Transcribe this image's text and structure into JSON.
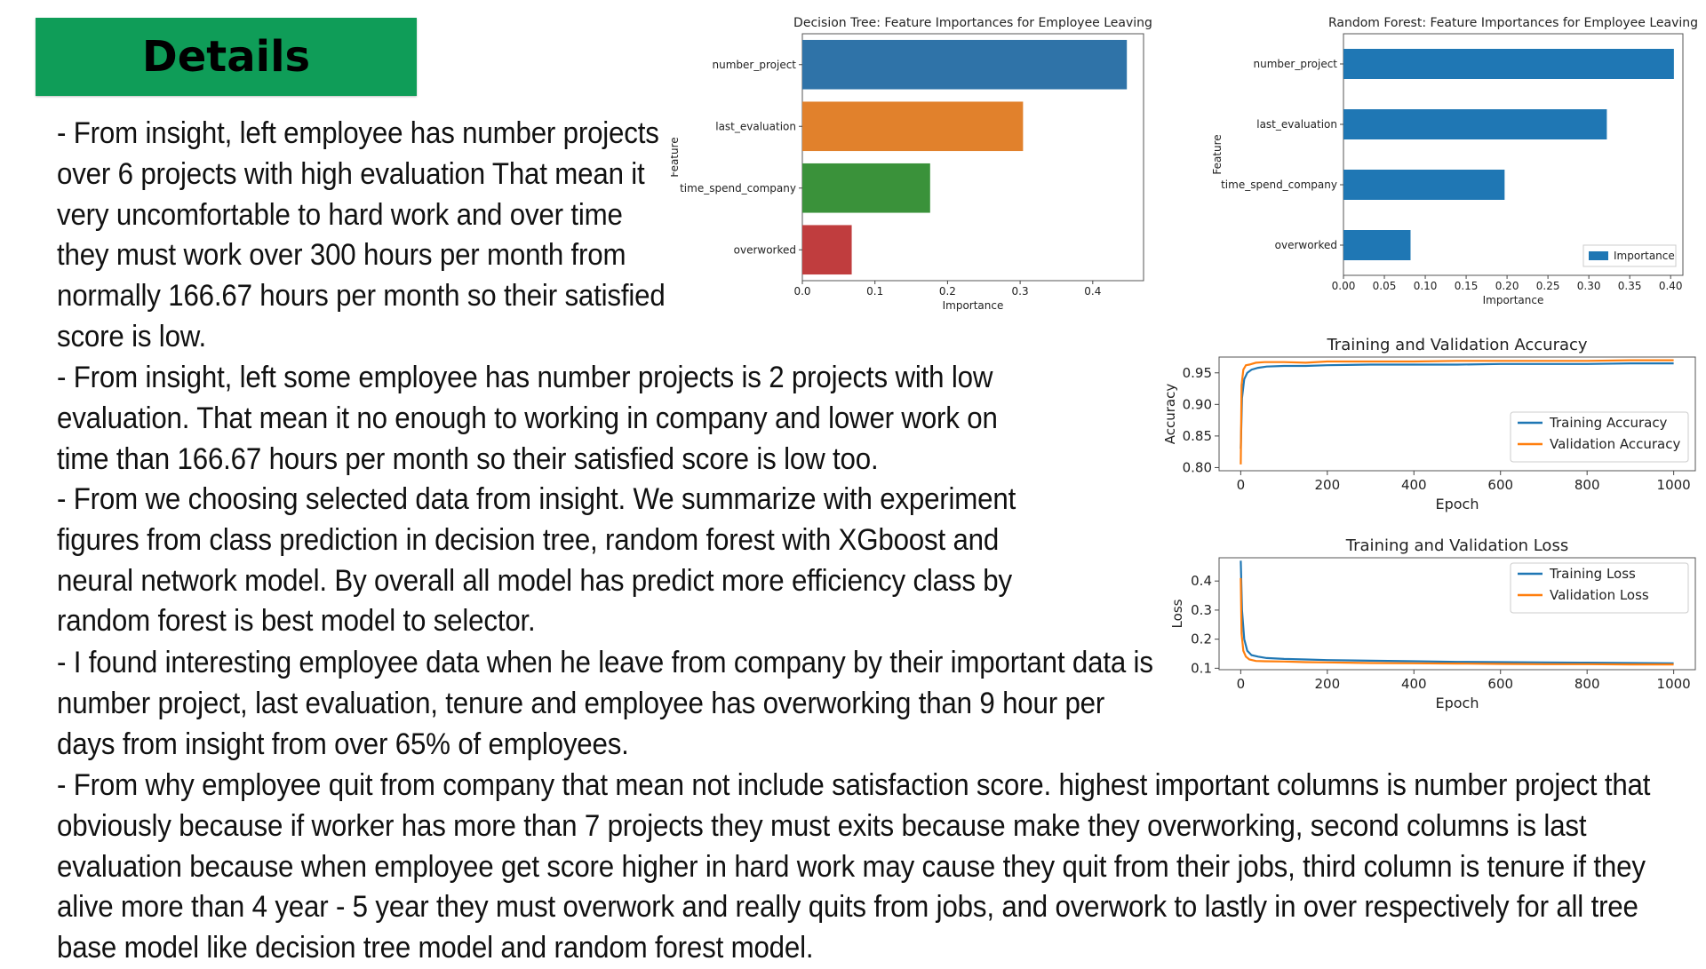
{
  "slide": {
    "title": "Details",
    "paragraphs": [
      "- From insight, left employee has number projects over 6 projects with high evaluation That mean it very uncomfortable to hard work and over time they must work over 300 hours per month from normally 166.67 hours per month so their satisfied score is low.",
      "- From insight, left some employee has number projects is 2 projects with low evaluation. That mean it no enough to working in company and lower work on time than 166.67 hours per month so their satisfied score is low too.",
      "- From we choosing selected data from insight. We summarize with experiment figures from class prediction in decision tree, random forest with XGboost and neural network model. By overall all model has predict more efficiency class by random forest is best model to selector.",
      "- I found interesting employee data when he leave from company by their important data is number project, last evaluation, tenure and employee has overworking than 9 hour per days from insight from over 65% of employees.",
      "- From why employee quit from company that mean not include satisfaction score. highest important columns is number project that obviously because if worker has more than 7 projects they must exits because make they overworking, second columns is last evaluation because when employee get score higher in hard work may cause they quit from their jobs, third column is tenure if they alive more than 4 year - 5 year they must overwork and really quits from jobs, and overwork to lastly in over respectively for all tree base model like decision tree model and random forest model."
    ]
  },
  "chart_data": [
    {
      "type": "bar",
      "orientation": "horizontal",
      "title": "Decision Tree: Feature Importances for Employee Leaving",
      "xlabel": "Importance",
      "ylabel": "Feature",
      "categories": [
        "number_project",
        "last_evaluation",
        "time_spend_company",
        "overworked"
      ],
      "values": [
        0.447,
        0.304,
        0.176,
        0.068
      ],
      "colors": [
        "#2f73a8",
        "#e1812c",
        "#3a923a",
        "#c03d3e"
      ],
      "xlim": [
        0,
        0.47
      ],
      "xticks": [
        "0.0",
        "0.1",
        "0.2",
        "0.3",
        "0.4"
      ],
      "grid": false
    },
    {
      "type": "bar",
      "orientation": "horizontal",
      "title": "Random Forest: Feature Importances for Employee Leaving",
      "xlabel": "Importance",
      "ylabel": "Feature",
      "categories": [
        "number_project",
        "last_evaluation",
        "time_spend_company",
        "overworked"
      ],
      "values": [
        0.404,
        0.322,
        0.197,
        0.082
      ],
      "colors": [
        "#1f77b4"
      ],
      "xlim": [
        0,
        0.415
      ],
      "xticks": [
        "0.00",
        "0.05",
        "0.10",
        "0.15",
        "0.20",
        "0.25",
        "0.30",
        "0.35",
        "0.40"
      ],
      "legend": {
        "entries": [
          "Importance"
        ],
        "placement": "lower-right"
      },
      "grid": false
    },
    {
      "type": "line",
      "title": "Training and Validation Accuracy",
      "xlabel": "Epoch",
      "ylabel": "Accuracy",
      "xlim": [
        -50,
        1050
      ],
      "ylim": [
        0.795,
        0.975
      ],
      "xticks": [
        "0",
        "200",
        "400",
        "600",
        "800",
        "1000"
      ],
      "yticks": [
        "0.80",
        "0.85",
        "0.90",
        "0.95"
      ],
      "series": [
        {
          "name": "Training Accuracy",
          "color": "#1f77b4",
          "x": [
            0,
            3,
            8,
            15,
            25,
            40,
            60,
            100,
            150,
            200,
            300,
            400,
            500,
            600,
            700,
            800,
            900,
            1000
          ],
          "y": [
            0.83,
            0.91,
            0.94,
            0.95,
            0.955,
            0.958,
            0.96,
            0.961,
            0.961,
            0.962,
            0.963,
            0.963,
            0.963,
            0.964,
            0.964,
            0.964,
            0.965,
            0.965
          ]
        },
        {
          "name": "Validation Accuracy",
          "color": "#ff7f0e",
          "x": [
            0,
            2,
            6,
            12,
            20,
            35,
            55,
            100,
            150,
            200,
            300,
            400,
            500,
            600,
            700,
            800,
            900,
            1000
          ],
          "y": [
            0.805,
            0.93,
            0.955,
            0.962,
            0.963,
            0.966,
            0.967,
            0.967,
            0.966,
            0.968,
            0.968,
            0.968,
            0.969,
            0.969,
            0.969,
            0.969,
            0.97,
            0.97
          ]
        }
      ],
      "legend": {
        "placement": "lower-right"
      }
    },
    {
      "type": "line",
      "title": "Training and Validation Loss",
      "xlabel": "Epoch",
      "ylabel": "Loss",
      "xlim": [
        -50,
        1050
      ],
      "ylim": [
        0.095,
        0.48
      ],
      "xticks": [
        "0",
        "200",
        "400",
        "600",
        "800",
        "1000"
      ],
      "yticks": [
        "0.1",
        "0.2",
        "0.3",
        "0.4"
      ],
      "series": [
        {
          "name": "Training Loss",
          "color": "#1f77b4",
          "x": [
            0,
            3,
            8,
            15,
            25,
            40,
            60,
            100,
            150,
            200,
            300,
            400,
            500,
            600,
            700,
            800,
            900,
            1000
          ],
          "y": [
            0.47,
            0.3,
            0.2,
            0.16,
            0.145,
            0.14,
            0.135,
            0.132,
            0.13,
            0.128,
            0.126,
            0.124,
            0.122,
            0.121,
            0.12,
            0.119,
            0.118,
            0.117
          ]
        },
        {
          "name": "Validation Loss",
          "color": "#ff7f0e",
          "x": [
            0,
            2,
            6,
            12,
            20,
            35,
            55,
            100,
            150,
            200,
            300,
            400,
            500,
            600,
            700,
            800,
            900,
            1000
          ],
          "y": [
            0.41,
            0.22,
            0.16,
            0.14,
            0.13,
            0.125,
            0.124,
            0.123,
            0.121,
            0.12,
            0.118,
            0.117,
            0.116,
            0.115,
            0.114,
            0.114,
            0.113,
            0.113
          ]
        }
      ],
      "legend": {
        "placement": "upper-right"
      }
    }
  ]
}
